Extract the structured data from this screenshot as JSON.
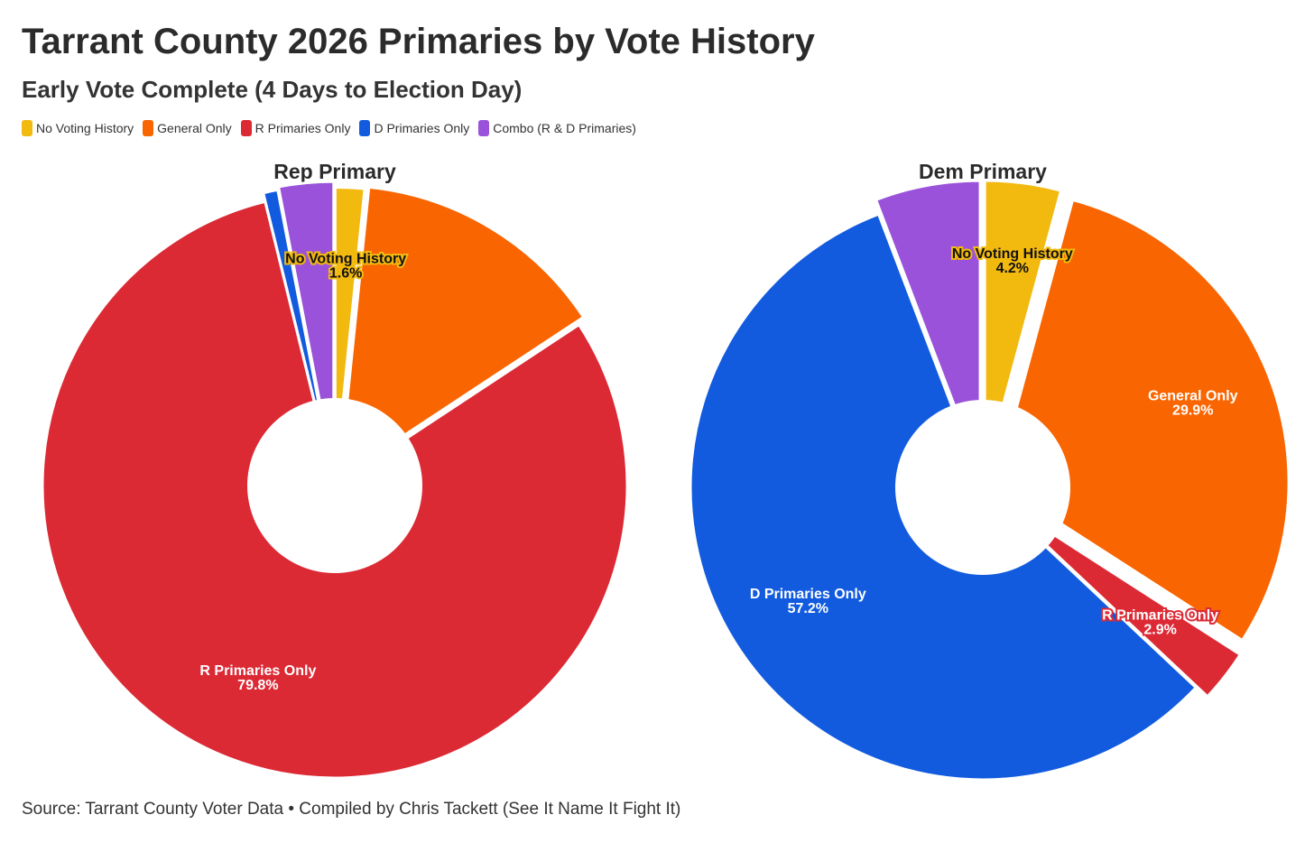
{
  "title": "Tarrant County 2026 Primaries by Vote History",
  "subtitle": "Early Vote Complete (4 Days to Election Day)",
  "source": "Source: Tarrant County Voter Data • Compiled by Chris Tackett (See It Name It Fight It)",
  "legend": [
    {
      "label": "No Voting History",
      "color": "#f2b90f"
    },
    {
      "label": "General Only",
      "color": "#f96500"
    },
    {
      "label": "R Primaries Only",
      "color": "#dc2a35"
    },
    {
      "label": "D Primaries Only",
      "color": "#125bdf"
    },
    {
      "label": "Combo (R & D Primaries)",
      "color": "#9a52da"
    }
  ],
  "chart_data": [
    {
      "type": "pie",
      "title": "Rep Primary",
      "slices": [
        {
          "label": "No Voting History",
          "value": 1.6,
          "color": "#f2b90f",
          "pull": 0.02,
          "show_label": true,
          "label_text": "No Voting History",
          "value_text": "1.6%",
          "label_style": "outlined",
          "label_color": "#111111"
        },
        {
          "label": "General Only",
          "value": 14.0,
          "color": "#f96500",
          "pull": 0.03,
          "show_label": false
        },
        {
          "label": "R Primaries Only",
          "value": 79.8,
          "color": "#dc2a35",
          "pull": 0,
          "show_label": true,
          "label_text": "R Primaries Only",
          "value_text": "79.8%",
          "label_style": "plain",
          "label_color": "#ffffff"
        },
        {
          "label": "D Primaries Only",
          "value": 0.8,
          "color": "#125bdf",
          "pull": 0.03,
          "show_label": false
        },
        {
          "label": "Combo (R & D Primaries)",
          "value": 3.0,
          "color": "#9a52da",
          "pull": 0.04,
          "show_label": false
        }
      ]
    },
    {
      "type": "pie",
      "title": "Dem Primary",
      "slices": [
        {
          "label": "No Voting History",
          "value": 4.2,
          "color": "#f2b90f",
          "pull": 0.05,
          "show_label": true,
          "label_text": "No Voting History",
          "value_text": "4.2%",
          "label_style": "outlined",
          "label_color": "#111111"
        },
        {
          "label": "General Only",
          "value": 29.9,
          "color": "#f96500",
          "pull": 0.05,
          "show_label": true,
          "label_text": "General Only",
          "value_text": "29.9%",
          "label_style": "plain",
          "label_color": "#ffffff"
        },
        {
          "label": "R Primaries Only",
          "value": 2.9,
          "color": "#dc2a35",
          "pull": 0.05,
          "show_label": true,
          "label_text": "R Primaries Only",
          "value_text": "2.9%",
          "label_style": "outlined-red",
          "label_color": "#ffffff"
        },
        {
          "label": "D Primaries Only",
          "value": 57.2,
          "color": "#125bdf",
          "pull": 0,
          "show_label": true,
          "label_text": "D Primaries Only",
          "value_text": "57.2%",
          "label_style": "plain",
          "label_color": "#ffffff"
        },
        {
          "label": "Combo (R & D Primaries)",
          "value": 5.8,
          "color": "#9a52da",
          "pull": 0.05,
          "show_label": false
        }
      ]
    }
  ]
}
